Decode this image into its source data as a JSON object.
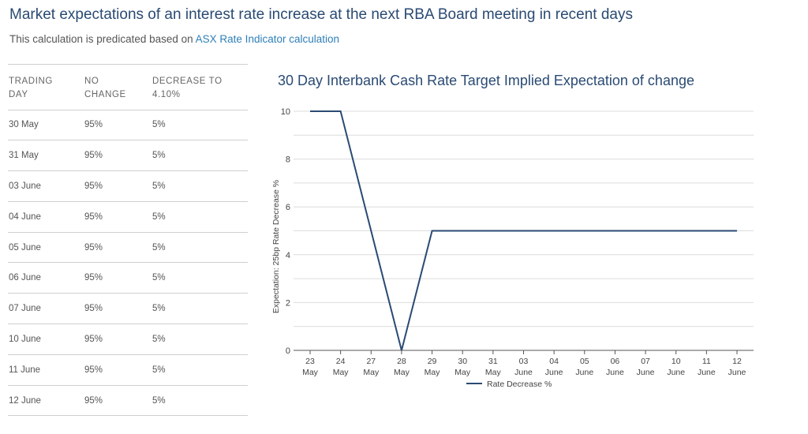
{
  "header": {
    "title": "Market expectations of an interest rate increase at the next RBA Board meeting in recent days",
    "subtitle_prefix": "This calculation is predicated based on ",
    "subtitle_link": "ASX Rate Indicator calculation"
  },
  "table": {
    "headers": [
      [
        "TRADING",
        "DAY"
      ],
      [
        "NO",
        "CHANGE"
      ],
      [
        "DECREASE TO",
        "4.10%"
      ]
    ],
    "rows": [
      [
        "30 May",
        "95%",
        "5%"
      ],
      [
        "31 May",
        "95%",
        "5%"
      ],
      [
        "03 June",
        "95%",
        "5%"
      ],
      [
        "04 June",
        "95%",
        "5%"
      ],
      [
        "05 June",
        "95%",
        "5%"
      ],
      [
        "06 June",
        "95%",
        "5%"
      ],
      [
        "07 June",
        "95%",
        "5%"
      ],
      [
        "10 June",
        "95%",
        "5%"
      ],
      [
        "11 June",
        "95%",
        "5%"
      ],
      [
        "12 June",
        "95%",
        "5%"
      ]
    ]
  },
  "chart_data": {
    "type": "line",
    "title": "30 Day Interbank Cash Rate Target Implied Expectation of change",
    "xlabel": "",
    "ylabel": "Expectation: 25bp Rate Decrease %",
    "categories": [
      [
        "23",
        "May"
      ],
      [
        "24",
        "May"
      ],
      [
        "27",
        "May"
      ],
      [
        "28",
        "May"
      ],
      [
        "29",
        "May"
      ],
      [
        "30",
        "May"
      ],
      [
        "31",
        "May"
      ],
      [
        "03",
        "June"
      ],
      [
        "04",
        "June"
      ],
      [
        "05",
        "June"
      ],
      [
        "06",
        "June"
      ],
      [
        "07",
        "June"
      ],
      [
        "10",
        "June"
      ],
      [
        "11",
        "June"
      ],
      [
        "12",
        "June"
      ]
    ],
    "series": [
      {
        "name": "Rate Decrease %",
        "values": [
          10,
          10,
          5,
          0,
          5,
          5,
          5,
          5,
          5,
          5,
          5,
          5,
          5,
          5,
          5
        ],
        "color": "#2a4a73"
      }
    ],
    "ylim": [
      0,
      10
    ],
    "yticks": [
      0,
      2,
      4,
      6,
      8,
      10
    ],
    "grid": true,
    "legend": "bottom-center"
  }
}
